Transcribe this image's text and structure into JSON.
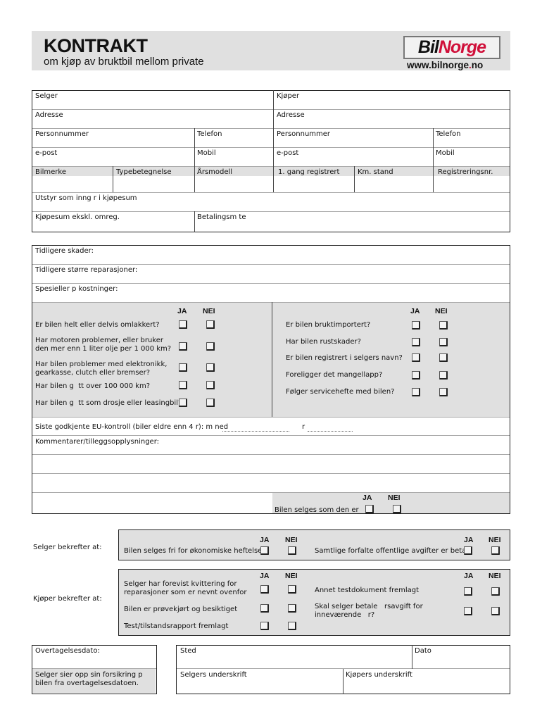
{
  "header": {
    "title": "KONTRAKT",
    "subtitle": "om kjøp av bruktbil mellom private",
    "logo": {
      "part1": "Bil",
      "part2": "Norge"
    },
    "url": {
      "pre": "www.",
      "mid": "bilnorge",
      "dot": ".",
      "post": "no"
    }
  },
  "colors": {
    "brand_red": "#d0103a",
    "shade": "#e0e0e0"
  },
  "parties": {
    "selger": "Selger",
    "kjoper": "Kjøper",
    "adresse": "Adresse",
    "personnummer": "Personnummer",
    "telefon": "Telefon",
    "epost": "e-post",
    "mobil": "Mobil"
  },
  "vehicle_columns": [
    "Bilmerke",
    "Typebetegnelse",
    "Årsmodell",
    "1. gang registrert",
    "Km. stand",
    "Registreringsnr."
  ],
  "utstyr": "Utstyr som inng r i kjøpesum",
  "kjopesum": "Kjøpesum ekskl. omreg.",
  "betalingsmate": "Betalingsm te",
  "history": [
    "Tidligere skader:",
    "Tidligere større reparasjoner:",
    "Spesieller p kostninger:"
  ],
  "ja": "JA",
  "nei": "NEI",
  "questions_left": [
    "Er bilen helt eller delvis omlakkert?",
    "Har motoren problemer, eller bruker\nden mer enn 1 liter olje per 1 000 km?",
    "Har bilen problemer med elektronikk,\ngearkasse, clutch eller bremser?",
    "Har bilen g  tt over 100 000 km?",
    "Har bilen g  tt som drosje eller leasingbil?"
  ],
  "questions_right": [
    "Er bilen bruktimportert?",
    "Har bilen rustskader?",
    "Er bilen registrert i selgers navn?",
    "Foreligger det mangellapp?",
    "Følger servicehefte med bilen?"
  ],
  "eu_kontroll": {
    "label": "Siste godkjente EU-kontroll (biler eldre enn 4   r):  m  ned",
    "year_label": "r"
  },
  "kommentarer": "Kommentarer/tilleggsopplysninger:",
  "selges_som_den_er": "Bilen selges som den er",
  "selger_bekrefter": {
    "label": "Selger bekrefter at:",
    "items": [
      "Bilen selges fri for økonomiske heftelser",
      "Samtlige forfalte offentlige avgifter er betalt"
    ]
  },
  "kjoper_bekrefter": {
    "label": "Kjøper bekrefter at:",
    "items_left": [
      "Selger har forevist kvittering for\nreparasjoner som er nevnt ovenfor",
      "Bilen er prøvekjørt og besiktiget",
      "Test/tilstandsrapport fremlagt"
    ],
    "items_right": [
      "Annet testdokument fremlagt",
      "Skal selger betale   rsavgift for\ninneværende   r?"
    ]
  },
  "overtagelse": {
    "dato": "Overtagelsesdato:",
    "forsikring": "Selger sier opp sin forsikring p\nbilen fra overtagelsesdatoen."
  },
  "signatures": {
    "sted": "Sted",
    "dato": "Dato",
    "selger": "Selgers underskrift",
    "kjoper": "Kjøpers underskrift"
  }
}
